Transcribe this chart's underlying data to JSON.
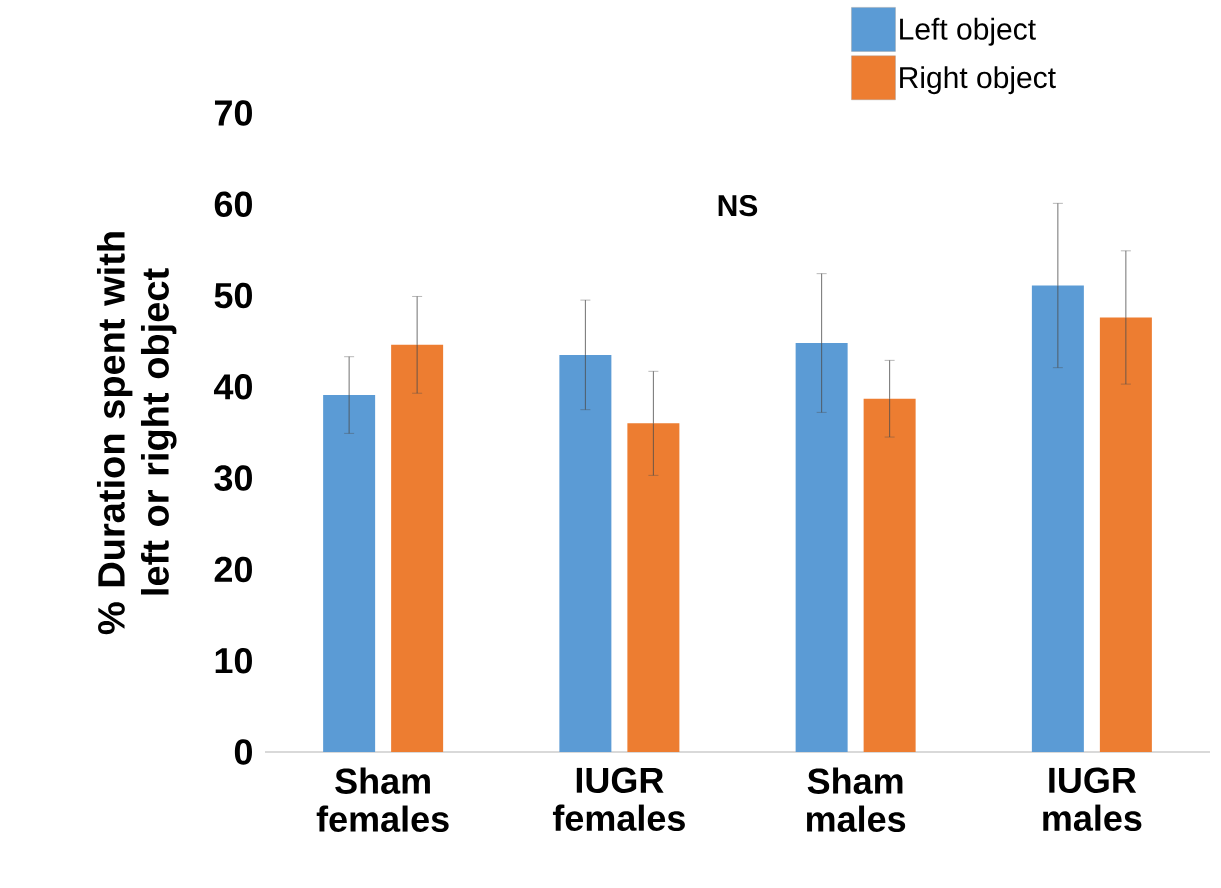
{
  "chart_data": {
    "type": "bar",
    "ylabel": "% Duration spent with left or right object",
    "categories": [
      "Sham females",
      "IUGR females",
      "Sham males",
      "IUGR males"
    ],
    "series": [
      {
        "name": "Left object",
        "color": "#5b9bd5",
        "values": [
          39.1,
          43.5,
          44.8,
          51.1
        ],
        "errors": [
          4.2,
          6.0,
          7.6,
          9.0
        ]
      },
      {
        "name": "Right object",
        "color": "#ed7d31",
        "values": [
          44.6,
          36.0,
          38.7,
          47.6
        ],
        "errors": [
          5.3,
          5.7,
          4.2,
          7.3
        ]
      }
    ],
    "ylim": [
      0,
      70
    ],
    "yticks": [
      0,
      10,
      20,
      30,
      40,
      50,
      60,
      70
    ],
    "annotations": [
      "NS"
    ],
    "legend": "top right",
    "grid": false
  }
}
